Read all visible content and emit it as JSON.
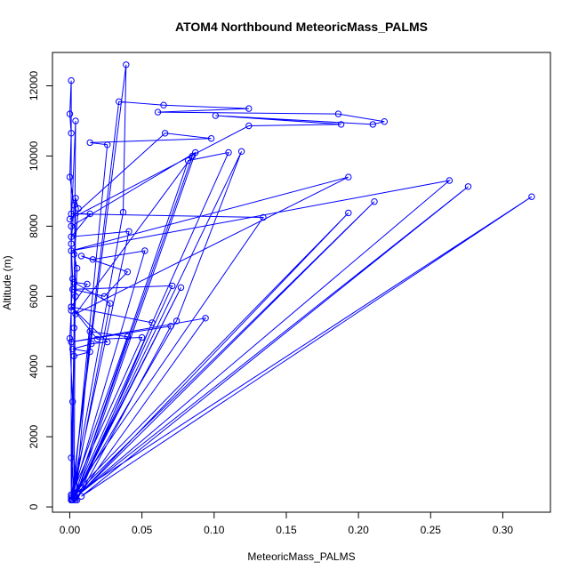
{
  "chart_data": {
    "type": "line",
    "title": "ATOM4 Northbound MeteoricMass_PALMS",
    "xlabel": "MeteoricMass_PALMS",
    "ylabel": "Altitude (m)",
    "xlim": [
      -0.012,
      0.333
    ],
    "ylim": [
      -150,
      12950
    ],
    "x_ticks": [
      0.0,
      0.05,
      0.1,
      0.15,
      0.2,
      0.25,
      0.3
    ],
    "x_tick_labels": [
      "0.00",
      "0.05",
      "0.10",
      "0.15",
      "0.20",
      "0.25",
      "0.30"
    ],
    "y_ticks": [
      0,
      2000,
      4000,
      6000,
      8000,
      10000,
      12000
    ],
    "y_tick_labels": [
      "0",
      "2000",
      "4000",
      "6000",
      "8000",
      "10000",
      "12000"
    ],
    "grid": false,
    "series": [
      {
        "color": "#0000ff",
        "marker": "open-circle",
        "points": [
          [
            0.001,
            200
          ],
          [
            0.001,
            12150
          ],
          [
            0.0,
            11200
          ],
          [
            0.001,
            10650
          ],
          [
            0.0,
            9400
          ],
          [
            0.003,
            8600
          ],
          [
            0.001,
            7500
          ],
          [
            0.002,
            6500
          ],
          [
            0.001,
            5600
          ],
          [
            0.0,
            4800
          ],
          [
            0.002,
            3000
          ],
          [
            0.001,
            1400
          ],
          [
            0.003,
            300
          ],
          [
            0.004,
            8800
          ],
          [
            0.006,
            8500
          ],
          [
            0.003,
            7200
          ],
          [
            0.005,
            6800
          ],
          [
            0.004,
            6000
          ],
          [
            0.003,
            5100
          ],
          [
            0.001,
            250
          ],
          [
            0.039,
            12600
          ],
          [
            0.037,
            8400
          ],
          [
            0.001,
            200
          ],
          [
            0.034,
            11550
          ],
          [
            0.065,
            11450
          ],
          [
            0.124,
            11350
          ],
          [
            0.061,
            11250
          ],
          [
            0.186,
            11200
          ],
          [
            0.218,
            10980
          ],
          [
            0.21,
            10900
          ],
          [
            0.101,
            11150
          ],
          [
            0.188,
            10900
          ],
          [
            0.124,
            10860
          ],
          [
            0.0,
            8200
          ],
          [
            0.066,
            10650
          ],
          [
            0.098,
            10500
          ],
          [
            0.014,
            10380
          ],
          [
            0.026,
            10320
          ],
          [
            0.002,
            200
          ],
          [
            0.004,
            11000
          ],
          [
            0.001,
            8000
          ],
          [
            0.087,
            10100
          ],
          [
            0.004,
            300
          ],
          [
            0.119,
            10130
          ],
          [
            0.074,
            5300
          ],
          [
            0.002,
            200
          ],
          [
            0.11,
            10100
          ],
          [
            0.082,
            9870
          ],
          [
            0.003,
            300
          ],
          [
            0.085,
            10000
          ],
          [
            0.004,
            5500
          ],
          [
            0.193,
            9400
          ],
          [
            0.001,
            7300
          ],
          [
            0.263,
            9300
          ],
          [
            0.003,
            250
          ],
          [
            0.276,
            9130
          ],
          [
            0.008,
            300
          ],
          [
            0.32,
            8840
          ],
          [
            0.005,
            400
          ],
          [
            0.211,
            8700
          ],
          [
            0.004,
            250
          ],
          [
            0.193,
            8380
          ],
          [
            0.001,
            300
          ],
          [
            0.134,
            8250
          ],
          [
            0.001,
            8350
          ],
          [
            0.014,
            8350
          ],
          [
            0.001,
            7700
          ],
          [
            0.041,
            7850
          ],
          [
            0.001,
            200
          ],
          [
            0.052,
            7300
          ],
          [
            0.016,
            7050
          ],
          [
            0.008,
            7150
          ],
          [
            0.04,
            6700
          ],
          [
            0.024,
            6000
          ],
          [
            0.002,
            6200
          ],
          [
            0.071,
            6300
          ],
          [
            0.004,
            300
          ],
          [
            0.077,
            6250
          ],
          [
            0.002,
            200
          ],
          [
            0.028,
            5800
          ],
          [
            0.003,
            6400
          ],
          [
            0.012,
            6350
          ],
          [
            0.001,
            5700
          ],
          [
            0.057,
            5250
          ],
          [
            0.005,
            200
          ],
          [
            0.07,
            5150
          ],
          [
            0.001,
            4700
          ],
          [
            0.094,
            5380
          ],
          [
            0.004,
            200
          ],
          [
            0.014,
            5000
          ],
          [
            0.04,
            4850
          ],
          [
            0.001,
            350
          ],
          [
            0.05,
            4830
          ],
          [
            0.019,
            4780
          ],
          [
            0.001,
            5700
          ],
          [
            0.026,
            4700
          ],
          [
            0.015,
            4650
          ],
          [
            0.002,
            4500
          ],
          [
            0.014,
            4420
          ],
          [
            0.003,
            4300
          ],
          [
            0.001,
            200
          ]
        ]
      }
    ]
  }
}
